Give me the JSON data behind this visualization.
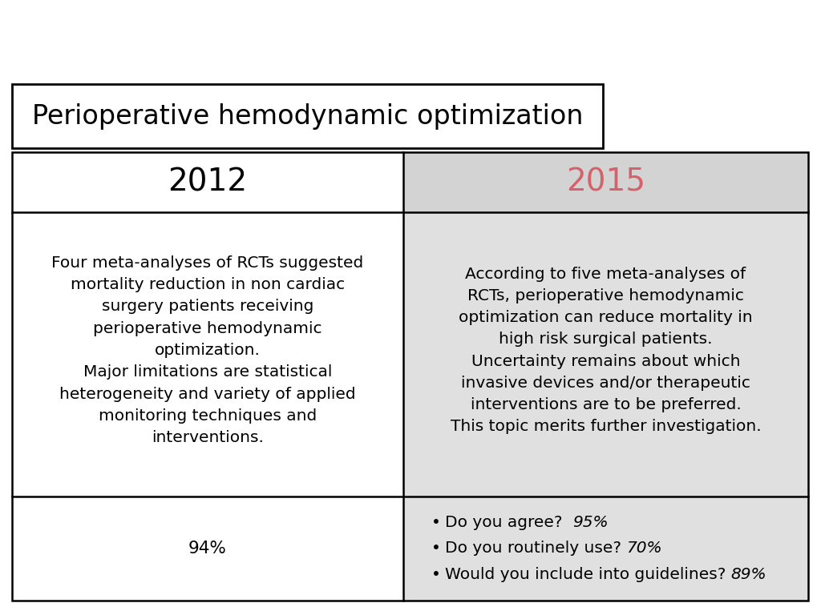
{
  "title": "Perioperative hemodynamic optimization",
  "title_fontsize": 24,
  "background_color": "#ffffff",
  "col1_header": "2012",
  "col2_header": "2015",
  "header_fontsize": 28,
  "col2_header_color": "#d4626a",
  "col1_body": "Four meta-analyses of RCTs suggested\nmortality reduction in non cardiac\nsurgery patients receiving\nperioperative hemodynamic\noptimization.\nMajor limitations are statistical\nheterogeneity and variety of applied\nmonitoring techniques and\ninterventions.",
  "col2_body": "According to five meta-analyses of\nRCTs, perioperative hemodynamic\noptimization can reduce mortality in\nhigh risk surgical patients.\nUncertainty remains about which\ninvasive devices and/or therapeutic\ninterventions are to be preferred.\nThis topic merits further investigation.",
  "body_fontsize": 14.5,
  "col1_footer": "94%",
  "col2_footer_bullets": [
    [
      "Do you agree?  ",
      "95%"
    ],
    [
      "Do you routinely use? ",
      "70%"
    ],
    [
      "Would you include into guidelines? ",
      "89%"
    ]
  ],
  "footer_fontsize": 14.5,
  "gray_bg": "#d3d3d3",
  "light_gray_bg": "#e0e0e0"
}
